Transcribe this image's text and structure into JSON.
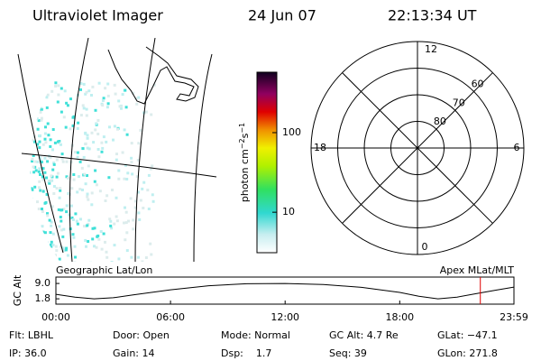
{
  "header": {
    "instrument": "Ultraviolet Imager",
    "date": "24 Jun 07",
    "time": "22:13:34 UT"
  },
  "map": {
    "label": "Geographic Lat/Lon"
  },
  "colorbar": {
    "label_parts": [
      "photon cm",
      "−2",
      "s",
      "−1"
    ],
    "ticks": [
      10,
      100
    ],
    "clim": [
      3.1,
      575
    ],
    "log": true
  },
  "polar": {
    "label": "Apex MLat/MLT",
    "mlt_labels": [
      "12",
      "18",
      "6",
      "0"
    ],
    "lat_labels": [
      60,
      70,
      80
    ],
    "lat_lim": [
      50,
      90
    ]
  },
  "chart_data": {
    "type": "line",
    "y_label": "GC Alt",
    "x": [
      0,
      1,
      2,
      3,
      4,
      6,
      8,
      10,
      12,
      14,
      16,
      18,
      19,
      20,
      21,
      22,
      23,
      23.98
    ],
    "values": [
      3.9,
      2.6,
      1.8,
      2.3,
      3.6,
      6.0,
      7.9,
      8.9,
      9.0,
      8.5,
      7.2,
      4.8,
      3.0,
      1.8,
      2.6,
      4.2,
      5.8,
      7.3
    ],
    "color": "#000000",
    "marker_x": 22.22,
    "marker_color": "#e00000",
    "xlim": [
      0,
      23.98
    ],
    "ylim": [
      -0.7,
      12
    ],
    "xticks": [
      {
        "value": 0,
        "label": "00:00"
      },
      {
        "value": 6,
        "label": "06:00"
      },
      {
        "value": 12,
        "label": "12:00"
      },
      {
        "value": 18,
        "label": "18:00"
      },
      {
        "value": 23.98,
        "label": "23:59"
      }
    ],
    "yticks": [
      {
        "value": 1.8,
        "label": "1.8"
      },
      {
        "value": 9.0,
        "label": "9.0"
      }
    ]
  },
  "info": [
    [
      "Flt: LBHL",
      "Door: Open",
      "Mode: Normal",
      "GC Alt: 4.7 Re",
      "GLat: −47.1"
    ],
    [
      "IP: 36.0",
      "Gain: 14",
      "Dsp:    1.7",
      "Seq: 39",
      "GLon: 271.8"
    ]
  ]
}
